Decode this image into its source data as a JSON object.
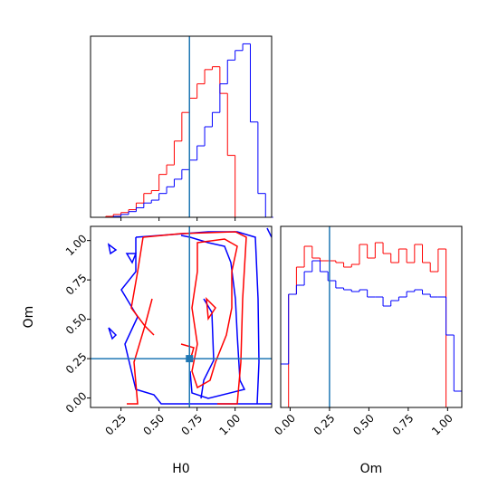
{
  "chart_data": [
    {
      "type": "histogram",
      "xlim": [
        0.05,
        1.24
      ],
      "ylim": [
        0,
        190
      ],
      "xticks": [
        0.25,
        0.5,
        0.75,
        1.0
      ],
      "bins": [
        0.05,
        0.1,
        0.15,
        0.2,
        0.25,
        0.3,
        0.35,
        0.4,
        0.45,
        0.5,
        0.55,
        0.6,
        0.65,
        0.7,
        0.75,
        0.8,
        0.85,
        0.9,
        0.95,
        1.0,
        1.05,
        1.1,
        1.15,
        1.2,
        1.25
      ],
      "series": [
        {
          "color": "#ff0000",
          "values": [
            0,
            0,
            1,
            3,
            5,
            8,
            15,
            25,
            28,
            45,
            55,
            80,
            110,
            125,
            140,
            155,
            158,
            130,
            65,
            0,
            0,
            0,
            0,
            0
          ]
        },
        {
          "color": "#0000ff",
          "values": [
            0,
            0,
            0,
            1,
            3,
            6,
            10,
            15,
            18,
            25,
            32,
            40,
            50,
            60,
            75,
            95,
            110,
            140,
            165,
            175,
            182,
            100,
            25,
            0
          ]
        }
      ],
      "truth": 0.7,
      "truth_color": "#1f77b4"
    },
    {
      "type": "contour",
      "xlabel": "H0",
      "ylabel": "Om",
      "xlim": [
        0.05,
        1.24
      ],
      "ylim": [
        -0.06,
        1.09
      ],
      "xticks": [
        {
          "value": 0.25,
          "label": "0.25"
        },
        {
          "value": 0.5,
          "label": "0.50"
        },
        {
          "value": 0.75,
          "label": "0.75"
        },
        {
          "value": 1.0,
          "label": "1.00"
        }
      ],
      "yticks": [
        {
          "value": 0,
          "label": "0.00"
        },
        {
          "value": 0.25,
          "label": "0.25"
        },
        {
          "value": 0.5,
          "label": "0.50"
        },
        {
          "value": 0.75,
          "label": "0.75"
        },
        {
          "value": 1.0,
          "label": "1.00"
        }
      ],
      "truth_x": 0.7,
      "truth_y": 0.25,
      "truth_color": "#1f77b4"
    },
    {
      "type": "histogram",
      "xlabel": "Om",
      "xlim": [
        -0.06,
        1.09
      ],
      "ylim": [
        0,
        200
      ],
      "xticks": [
        {
          "value": 0,
          "label": "0.00"
        },
        {
          "value": 0.25,
          "label": "0.25"
        },
        {
          "value": 0.5,
          "label": "0.50"
        },
        {
          "value": 0.75,
          "label": "0.75"
        },
        {
          "value": 1.0,
          "label": "1.00"
        }
      ],
      "bins": [
        -0.06,
        -0.01,
        0.04,
        0.09,
        0.14,
        0.19,
        0.24,
        0.29,
        0.34,
        0.39,
        0.44,
        0.49,
        0.54,
        0.59,
        0.64,
        0.69,
        0.74,
        0.79,
        0.84,
        0.89,
        0.94,
        0.99,
        1.04,
        1.09
      ],
      "series": [
        {
          "color": "#ff0000",
          "values": [
            0,
            125,
            155,
            178,
            165,
            162,
            162,
            160,
            155,
            158,
            180,
            165,
            182,
            170,
            160,
            175,
            160,
            180,
            160,
            150,
            175,
            0,
            0
          ]
        },
        {
          "color": "#0000ff",
          "values": [
            48,
            125,
            135,
            150,
            162,
            150,
            140,
            132,
            130,
            128,
            130,
            122,
            122,
            112,
            118,
            122,
            128,
            130,
            125,
            122,
            122,
            80,
            18
          ]
        }
      ],
      "truth": 0.25,
      "truth_color": "#1f77b4"
    }
  ]
}
